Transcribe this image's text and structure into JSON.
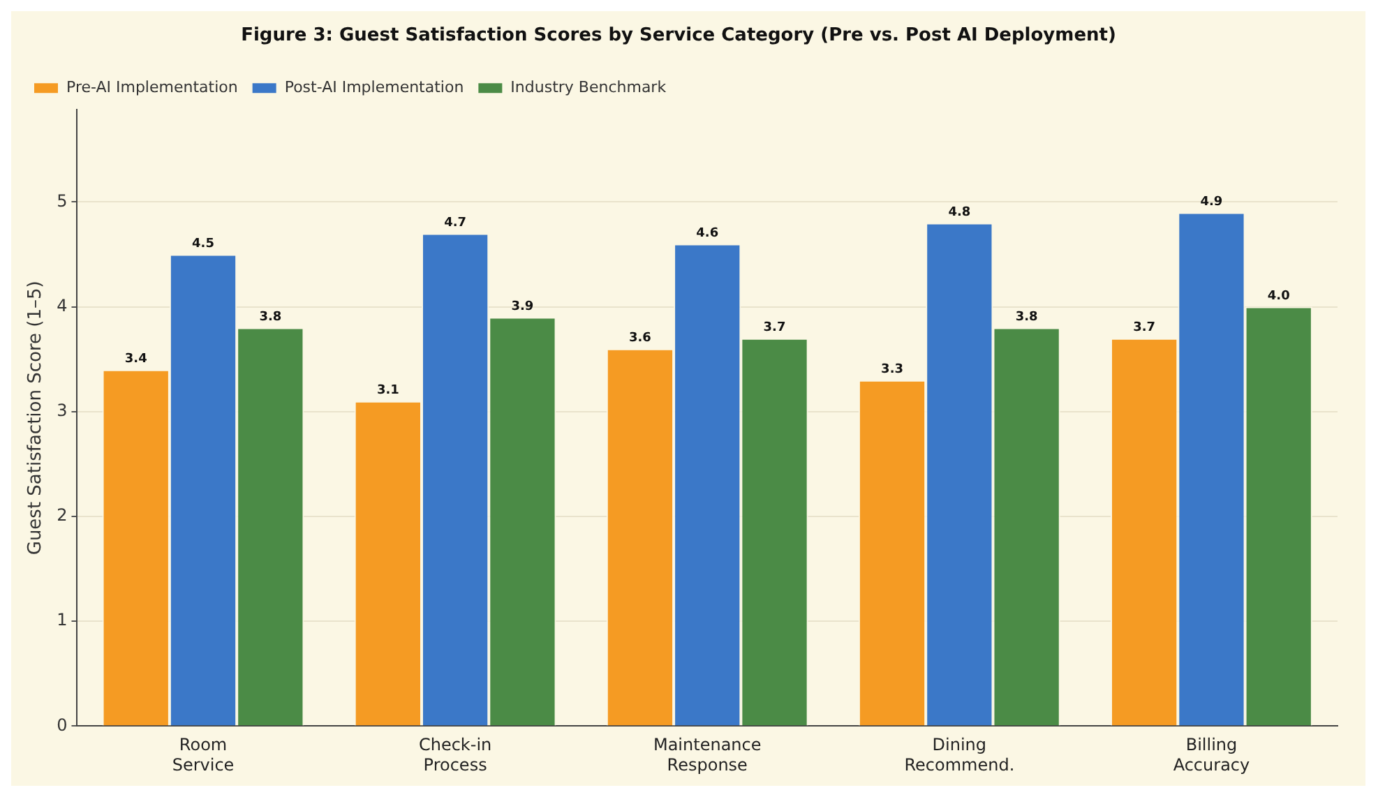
{
  "chart_data": {
    "type": "bar",
    "title": "Figure 3: Guest Satisfaction Scores by Service Category (Pre vs. Post AI Deployment)",
    "ylabel": "Guest Satisfaction Score (1–5)",
    "categories": [
      "Room\nService",
      "Check-in\nProcess",
      "Maintenance\nResponse",
      "Dining\nRecommend.",
      "Billing\nAccuracy"
    ],
    "series": [
      {
        "name": "Pre-AI Implementation",
        "color": "#f59b23",
        "values": [
          3.4,
          3.1,
          3.6,
          3.3,
          3.7
        ],
        "value_labels": [
          "3.4",
          "3.1",
          "3.6",
          "3.3",
          "3.7"
        ]
      },
      {
        "name": "Post-AI Implementation",
        "color": "#3b78c8",
        "values": [
          4.5,
          4.7,
          4.6,
          4.8,
          4.9
        ],
        "value_labels": [
          "4.5",
          "4.7",
          "4.6",
          "4.8",
          "4.9"
        ]
      },
      {
        "name": "Industry Benchmark",
        "color": "#4b8b46",
        "values": [
          3.8,
          3.9,
          3.7,
          3.8,
          4.0
        ],
        "value_labels": [
          "3.8",
          "3.9",
          "3.7",
          "3.8",
          "4.0"
        ]
      }
    ],
    "ylim": [
      0,
      5.88
    ],
    "yticks": [
      0,
      1,
      2,
      3,
      4,
      5
    ],
    "grid": "y",
    "legend": "top left"
  }
}
